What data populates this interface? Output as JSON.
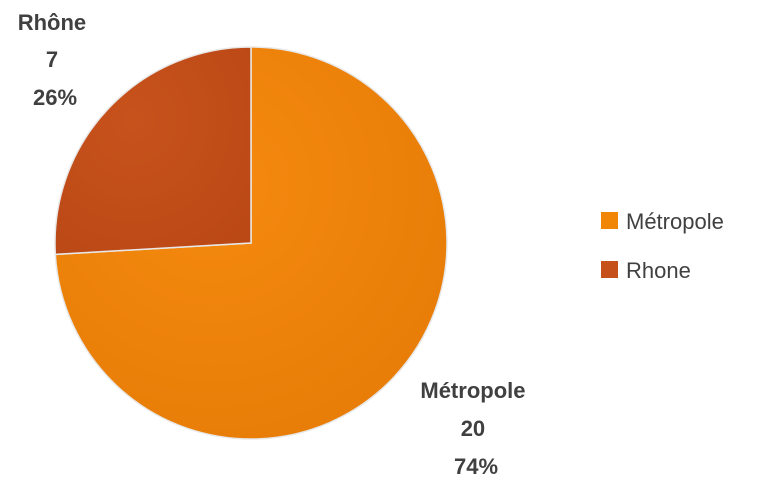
{
  "chart_data": {
    "type": "pie",
    "slices": [
      {
        "label": "Métropole",
        "value": 20,
        "percent": "74%",
        "color": "#F18506"
      },
      {
        "label": "Rhône",
        "value": 7,
        "percent": "26%",
        "color": "#C6501A"
      }
    ],
    "legend": {
      "position": "right",
      "entries": [
        {
          "label": "Métropole",
          "color": "#F18506"
        },
        {
          "label": "Rhone",
          "color": "#C6501A"
        }
      ]
    }
  }
}
